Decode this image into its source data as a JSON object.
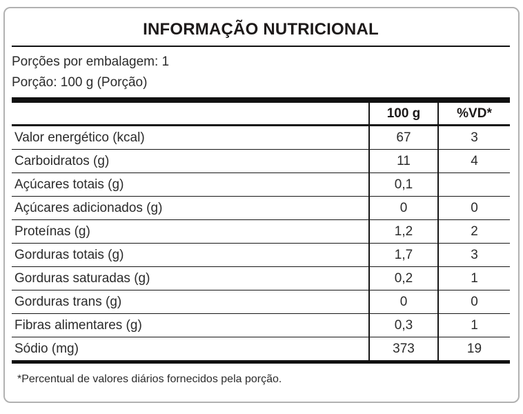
{
  "label": {
    "title": "INFORMAÇÃO NUTRICIONAL",
    "servings_per_package": "Porções por embalagem: 1",
    "portion": "Porção: 100 g (Porção)",
    "footnote": "*Percentual de valores diários fornecidos pela porção."
  },
  "table": {
    "header": {
      "amount": "100 g",
      "dv": "%VD*"
    },
    "rows": [
      {
        "label": "Valor energético (kcal)",
        "amount": "67",
        "dv": "3",
        "indent": 0
      },
      {
        "label": "Carboidratos (g)",
        "amount": "11",
        "dv": "4",
        "indent": 0
      },
      {
        "label": "Açúcares totais (g)",
        "amount": "0,1",
        "dv": "",
        "indent": 1
      },
      {
        "label": "Açúcares adicionados (g)",
        "amount": "0",
        "dv": "0",
        "indent": 2
      },
      {
        "label": "Proteínas (g)",
        "amount": "1,2",
        "dv": "2",
        "indent": 0
      },
      {
        "label": "Gorduras totais (g)",
        "amount": "1,7",
        "dv": "3",
        "indent": 0
      },
      {
        "label": "Gorduras saturadas (g)",
        "amount": "0,2",
        "dv": "1",
        "indent": 1
      },
      {
        "label": "Gorduras trans (g)",
        "amount": "0",
        "dv": "0",
        "indent": 1
      },
      {
        "label": "Fibras alimentares (g)",
        "amount": "0,3",
        "dv": "1",
        "indent": 0
      },
      {
        "label": "Sódio (mg)",
        "amount": "373",
        "dv": "19",
        "indent": 0
      }
    ]
  },
  "colors": {
    "border_black": "#111111",
    "card_border_gray": "#b1b1b1",
    "text": "#2b2b2b"
  }
}
